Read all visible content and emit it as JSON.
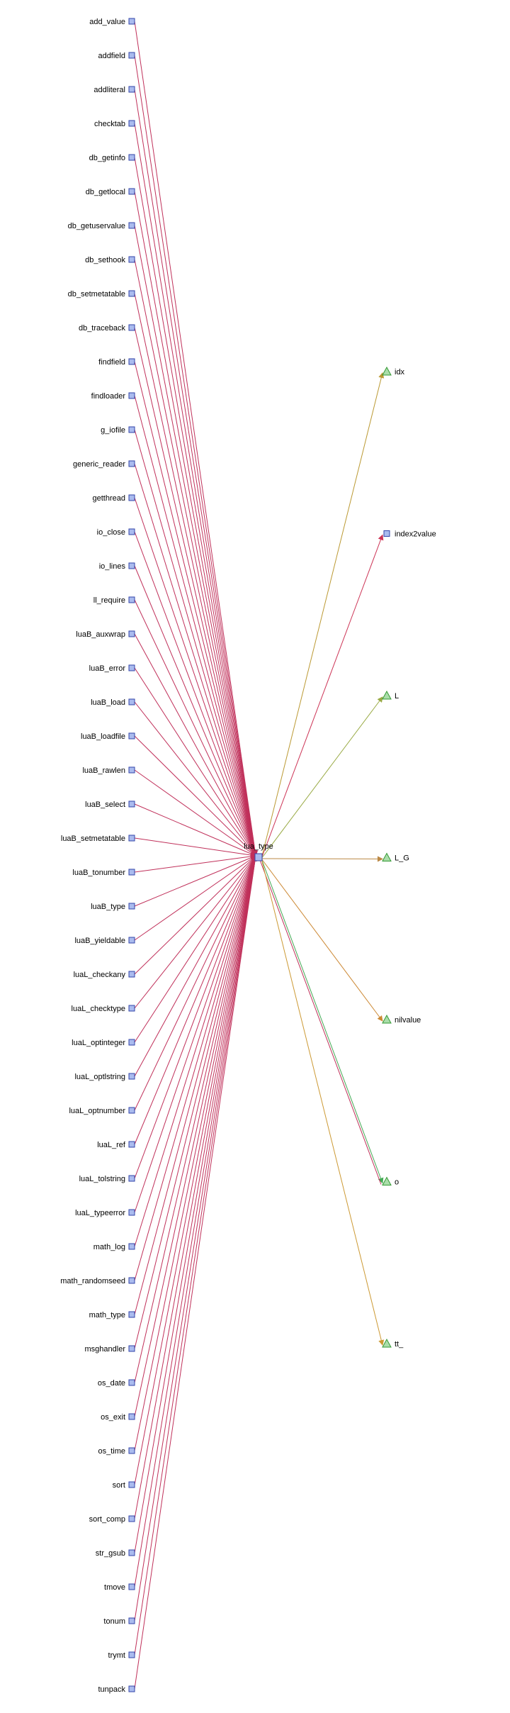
{
  "center": {
    "label": "lua_type",
    "shape": "square"
  },
  "callers": [
    "add_value",
    "addfield",
    "addliteral",
    "checktab",
    "db_getinfo",
    "db_getlocal",
    "db_getuservalue",
    "db_sethook",
    "db_setmetatable",
    "db_traceback",
    "findfield",
    "findloader",
    "g_iofile",
    "generic_reader",
    "getthread",
    "io_close",
    "io_lines",
    "ll_require",
    "luaB_auxwrap",
    "luaB_error",
    "luaB_load",
    "luaB_loadfile",
    "luaB_rawlen",
    "luaB_select",
    "luaB_setmetatable",
    "luaB_tonumber",
    "luaB_type",
    "luaB_yieldable",
    "luaL_checkany",
    "luaL_checktype",
    "luaL_optinteger",
    "luaL_optlstring",
    "luaL_optnumber",
    "luaL_ref",
    "luaL_tolstring",
    "luaL_typeerror",
    "math_log",
    "math_randomseed",
    "math_type",
    "msghandler",
    "os_date",
    "os_exit",
    "os_time",
    "sort",
    "sort_comp",
    "str_gsub",
    "tmove",
    "tonum",
    "trymt",
    "tunpack"
  ],
  "callees": [
    {
      "label": "idx",
      "shape": "triangle",
      "color": "#bb9933"
    },
    {
      "label": "index2value",
      "shape": "square",
      "color": "#cc3355"
    },
    {
      "label": "L",
      "shape": "triangle",
      "color": "#99aa44"
    },
    {
      "label": "L_G",
      "shape": "triangle",
      "color": "#bb8844"
    },
    {
      "label": "nilvalue",
      "shape": "triangle",
      "color": "#cc8833"
    },
    {
      "label": "o",
      "shape": "triangle",
      "color": "#44aa55"
    },
    {
      "label": "tt_",
      "shape": "triangle",
      "color": "#cc9933"
    }
  ],
  "colors": {
    "caller_edge": "#c0305a",
    "square_fill": "#aabbee",
    "square_stroke": "#3344aa",
    "triangle_fill": "#aaddaa",
    "triangle_stroke": "#339933"
  }
}
